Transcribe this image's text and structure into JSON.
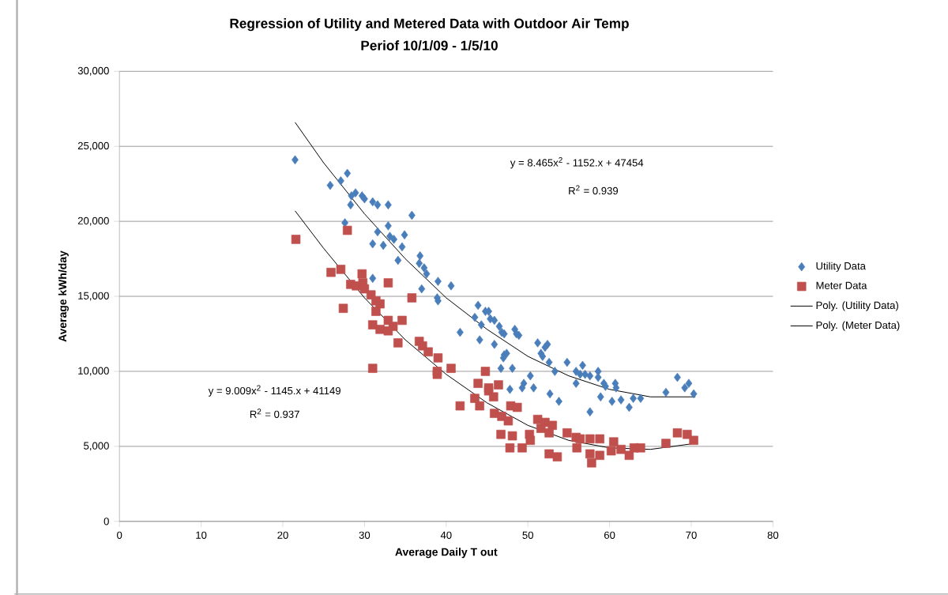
{
  "chart_data": {
    "type": "scatter",
    "title": "Regression of Utility and Metered Data with Outdoor Air Temp",
    "subtitle": "Periof 10/1/09 - 1/5/10",
    "xlabel": "Average Daily T out",
    "ylabel": "Average kWh/day",
    "xlim": [
      0,
      80
    ],
    "xticks": [
      0,
      10,
      20,
      30,
      40,
      50,
      60,
      70,
      80
    ],
    "ylim": [
      0,
      30000
    ],
    "yticks": [
      0,
      {
        "value": 5000,
        "label": "5,000"
      },
      {
        "value": 10000,
        "label": "10,000"
      },
      {
        "value": 15000,
        "label": "15,000"
      },
      {
        "value": 20000,
        "label": "20,000"
      },
      {
        "value": 25000,
        "label": "25,000"
      },
      {
        "value": 30000,
        "label": "30,000"
      }
    ],
    "grid": "y",
    "legend": "right",
    "annotations": [
      "y = 8.465x$^{2}$ - 1152.x + 47454",
      "R$^{2}$ = 0.939",
      "y = 9.009x$^{2}$ - 1145.x + 41149",
      "R$^{2}$ = 0.937"
    ],
    "series": [
      {
        "name": "Utility Data",
        "marker": "diamond",
        "color": "#4a7ebb",
        "x": [
          21.5,
          25.8,
          27.1,
          27.9,
          27.6,
          28.3,
          28.4,
          28.9,
          29.7,
          30,
          31,
          31.6,
          32.9,
          35.8,
          32.9,
          31.6,
          33.1,
          33.6,
          34.9,
          31,
          32.3,
          34.6,
          34.1,
          36.8,
          36.7,
          37.3,
          37.6,
          31,
          37,
          39,
          40.6,
          38.9,
          39,
          41.7,
          43.9,
          44.8,
          45.2,
          43.5,
          45.4,
          45.9,
          44.3,
          46.5,
          46.8,
          47.1,
          48.4,
          48.6,
          48.9,
          44.1,
          45.9,
          51.2,
          52.4,
          52.1,
          47.1,
          47.4,
          47,
          51.6,
          51.8,
          52.6,
          53.3,
          54.8,
          55.9,
          56.4,
          46.7,
          48.1,
          50.3,
          49.5,
          50.7,
          49.3,
          47.8,
          52.7,
          53.8,
          55.9,
          56.7,
          57,
          57.6,
          58.6,
          58.6,
          59.3,
          59.5,
          60.7,
          60.8,
          58.9,
          60.3,
          61.4,
          62.9,
          63.8,
          62.4,
          57.6,
          66.9,
          68.3,
          69.2,
          69.7,
          70.3
        ],
        "values": [
          24100,
          22400,
          22700,
          23200,
          19900,
          21100,
          21700,
          21900,
          21700,
          21500,
          21300,
          21100,
          21100,
          20400,
          19700,
          19300,
          19000,
          18800,
          19100,
          18500,
          18400,
          18300,
          17400,
          17700,
          17200,
          16900,
          16500,
          16200,
          15500,
          16000,
          15700,
          14900,
          14700,
          12600,
          14400,
          14000,
          14000,
          13600,
          13500,
          13400,
          13100,
          13000,
          12600,
          12500,
          12800,
          12500,
          12400,
          12100,
          11800,
          11900,
          11800,
          11600,
          11100,
          11200,
          10900,
          11200,
          11000,
          10600,
          10000,
          10600,
          10000,
          9800,
          10200,
          10200,
          9700,
          9200,
          8900,
          8900,
          8800,
          8500,
          8000,
          9200,
          10400,
          9800,
          9700,
          10000,
          9600,
          9200,
          9000,
          9200,
          8900,
          8300,
          8000,
          8100,
          8200,
          8200,
          7600,
          7300,
          8600,
          9600,
          8900,
          9200,
          8500
        ]
      },
      {
        "name": "Meter Data",
        "marker": "square",
        "color": "#c0504d",
        "x": [
          21.6,
          27.9,
          25.9,
          27.1,
          29.7,
          28.3,
          29,
          29.8,
          30,
          32.9,
          35.8,
          27.4,
          30.8,
          31.4,
          31.9,
          31.4,
          32.9,
          34.6,
          31,
          31.9,
          32.9,
          33.5,
          34.1,
          36.7,
          37.1,
          31,
          37.8,
          39,
          38.9,
          40.6,
          38.9,
          44.8,
          43.9,
          45.2,
          46.4,
          45.2,
          43.5,
          45.8,
          41.7,
          44.1,
          47.9,
          48.7,
          45.9,
          46.8,
          47.6,
          51.2,
          52.1,
          53,
          51.6,
          52.6,
          54.8,
          55.9,
          46.7,
          48.1,
          50.2,
          50.3,
          47.8,
          49.3,
          52.6,
          53.6,
          56,
          56.4,
          57.6,
          58.8,
          60.5,
          57.6,
          57.8,
          58.8,
          60.2,
          61.4,
          62.4,
          63,
          63.8,
          66.9,
          68.3,
          69.5,
          70.3
        ],
        "values": [
          18800,
          19400,
          16600,
          16800,
          16500,
          15800,
          15700,
          15900,
          15500,
          15900,
          14900,
          14200,
          15100,
          14700,
          14500,
          14000,
          13400,
          13400,
          13100,
          12800,
          12700,
          13000,
          11900,
          12000,
          11700,
          10200,
          11300,
          10900,
          10000,
          10200,
          9800,
          10000,
          9200,
          8900,
          9100,
          8700,
          8200,
          8300,
          7700,
          7700,
          7700,
          7600,
          7200,
          7000,
          6700,
          6800,
          6600,
          6400,
          6200,
          5900,
          5900,
          5600,
          5800,
          5700,
          5800,
          5400,
          4900,
          4900,
          4500,
          4300,
          4900,
          5500,
          5500,
          5500,
          5300,
          4500,
          3900,
          4400,
          4700,
          4800,
          4400,
          4900,
          4900,
          5200,
          5900,
          5800,
          5400
        ]
      },
      {
        "name": "Poly. (Utility Data)",
        "type": "line",
        "line_style": "solid",
        "color": "#000000",
        "x": [
          21.5,
          25,
          30,
          35,
          40,
          45,
          50,
          55,
          60,
          65,
          70.5
        ],
        "values": [
          26600,
          23900,
          20500,
          17500,
          14900,
          12800,
          11000,
          9700,
          8800,
          8300,
          8300
        ]
      },
      {
        "name": "Poly. (Meter Data)",
        "type": "line",
        "line_style": "solid",
        "color": "#000000",
        "x": [
          21.5,
          25,
          30,
          35,
          40,
          45,
          50,
          55,
          60,
          65,
          70.5
        ],
        "values": [
          20700,
          18200,
          14900,
          12100,
          9800,
          7900,
          6400,
          5400,
          4900,
          4800,
          5200
        ]
      }
    ]
  }
}
